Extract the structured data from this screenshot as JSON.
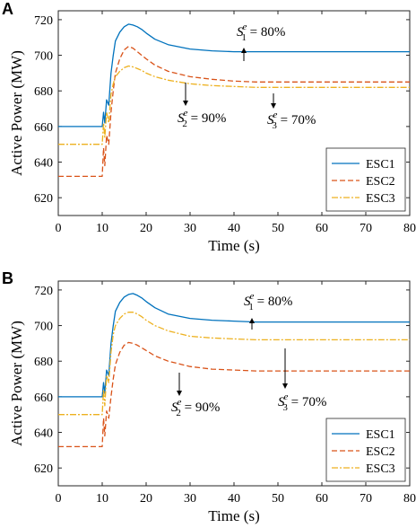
{
  "chart_data": [
    {
      "panel_label": "A",
      "type": "line",
      "xlabel": "Time (s)",
      "ylabel": "Active Power (MW)",
      "xlim": [
        0,
        80
      ],
      "ylim": [
        610,
        725
      ],
      "xticks": [
        0,
        10,
        20,
        30,
        40,
        50,
        60,
        70,
        80
      ],
      "yticks": [
        620,
        640,
        660,
        680,
        700,
        720
      ],
      "legend_position": "bottom-right",
      "series": [
        {
          "name": "ESC1",
          "color": "#0072BD",
          "dash": "solid",
          "x": [
            0,
            10,
            10.3,
            10.6,
            11,
            11.5,
            12,
            12.5,
            13,
            14,
            15,
            16,
            17,
            18,
            19,
            20,
            22,
            25,
            30,
            35,
            40,
            45,
            50,
            60,
            70,
            80
          ],
          "y": [
            660,
            660,
            668,
            662,
            675,
            672,
            690,
            700,
            708,
            713,
            716,
            717.5,
            717,
            716,
            714.5,
            712.5,
            709,
            706,
            703.5,
            702.5,
            702,
            702,
            702,
            702,
            702,
            702
          ]
        },
        {
          "name": "ESC2",
          "color": "#D95319",
          "dash": "dashed",
          "x": [
            0,
            10,
            10.3,
            10.6,
            11,
            11.5,
            12,
            12.5,
            13,
            14,
            15,
            16,
            17,
            18,
            19,
            20,
            22,
            25,
            30,
            35,
            40,
            45,
            50,
            60,
            70,
            80
          ],
          "y": [
            632,
            632,
            648,
            638,
            655,
            650,
            668,
            680,
            690,
            698,
            703,
            705,
            704,
            702,
            700,
            698,
            694.5,
            691,
            688,
            686.5,
            685.5,
            685,
            685,
            685,
            685,
            685
          ]
        },
        {
          "name": "ESC3",
          "color": "#EDB120",
          "dash": "dashdot",
          "x": [
            0,
            10,
            10.3,
            10.6,
            11,
            11.5,
            12,
            12.5,
            13,
            14,
            15,
            16,
            17,
            18,
            19,
            20,
            22,
            25,
            30,
            35,
            40,
            45,
            50,
            60,
            70,
            80
          ],
          "y": [
            650,
            650,
            662,
            654,
            668,
            662,
            678,
            684,
            688,
            691,
            693,
            694,
            693.5,
            692.5,
            691.5,
            690,
            688,
            686,
            684,
            683,
            682.5,
            682,
            682,
            682,
            682,
            682
          ]
        }
      ],
      "annotations": [
        {
          "main": "S",
          "sup": "e",
          "sub": "1",
          "value": " = 80%"
        },
        {
          "main": "S",
          "sup": "e",
          "sub": "2",
          "value": " = 90%"
        },
        {
          "main": "S",
          "sup": "e",
          "sub": "3",
          "value": " = 70%"
        }
      ]
    },
    {
      "panel_label": "B",
      "type": "line",
      "xlabel": "Time (s)",
      "ylabel": "Active Power (MW)",
      "xlim": [
        0,
        80
      ],
      "ylim": [
        610,
        725
      ],
      "xticks": [
        0,
        10,
        20,
        30,
        40,
        50,
        60,
        70,
        80
      ],
      "yticks": [
        620,
        640,
        660,
        680,
        700,
        720
      ],
      "legend_position": "bottom-right",
      "series": [
        {
          "name": "ESC1",
          "color": "#0072BD",
          "dash": "solid",
          "x": [
            0,
            10,
            10.3,
            10.6,
            11,
            11.5,
            12,
            12.5,
            13,
            14,
            15,
            16,
            17,
            18,
            19,
            20,
            22,
            25,
            30,
            35,
            40,
            45,
            50,
            60,
            70,
            80
          ],
          "y": [
            660,
            660,
            668,
            662,
            675,
            672,
            690,
            700,
            708,
            713,
            716,
            717.5,
            718,
            717,
            715.5,
            713.5,
            710,
            706.5,
            704,
            703,
            702.5,
            702,
            702,
            702,
            702,
            702
          ]
        },
        {
          "name": "ESC2",
          "color": "#D95319",
          "dash": "dashed",
          "x": [
            0,
            10,
            10.3,
            10.6,
            11,
            11.5,
            12,
            12.5,
            13,
            14,
            15,
            16,
            17,
            18,
            19,
            20,
            22,
            25,
            30,
            35,
            40,
            45,
            50,
            60,
            70,
            80
          ],
          "y": [
            632,
            632,
            648,
            638,
            652,
            648,
            660,
            670,
            678,
            685,
            689,
            690.5,
            690,
            689,
            687.5,
            686,
            683,
            680,
            677,
            675.5,
            675,
            674.5,
            674.5,
            674.5,
            674.5,
            674.5
          ]
        },
        {
          "name": "ESC3",
          "color": "#EDB120",
          "dash": "dashdot",
          "x": [
            0,
            10,
            10.3,
            10.6,
            11,
            11.5,
            12,
            12.5,
            13,
            14,
            15,
            16,
            17,
            18,
            19,
            20,
            22,
            25,
            30,
            35,
            40,
            45,
            50,
            60,
            70,
            80
          ],
          "y": [
            650,
            650,
            664,
            655,
            672,
            668,
            685,
            695,
            700,
            704,
            706.5,
            707.5,
            707.5,
            706.5,
            705,
            703,
            700,
            697,
            694,
            693,
            692.5,
            692,
            692,
            692,
            692,
            692
          ]
        }
      ],
      "annotations": [
        {
          "main": "S",
          "sup": "e",
          "sub": "1",
          "value": " = 80%"
        },
        {
          "main": "S",
          "sup": "e",
          "sub": "2",
          "value": " = 90%"
        },
        {
          "main": "S",
          "sup": "e",
          "sub": "3",
          "value": " = 70%"
        }
      ]
    }
  ]
}
